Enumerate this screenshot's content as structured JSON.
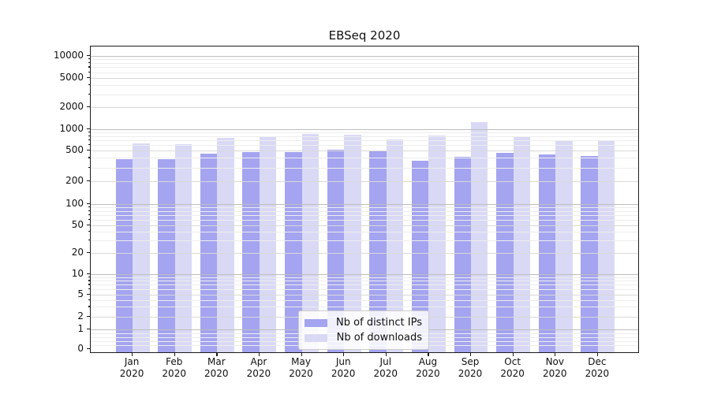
{
  "title": "EBSeq 2020",
  "chart_data": {
    "type": "bar",
    "title": "EBSeq 2020",
    "yscale": "symlog",
    "ylim": [
      0,
      13000
    ],
    "grid": true,
    "legend_position": "bottom-center",
    "categories": [
      "Jan 2020",
      "Feb 2020",
      "Mar 2020",
      "Apr 2020",
      "May 2020",
      "Jun 2020",
      "Jul 2020",
      "Aug 2020",
      "Sep 2020",
      "Oct 2020",
      "Nov 2020",
      "Dec 2020"
    ],
    "series": [
      {
        "name": "Nb of distinct IPs",
        "color": "#a4a4f0",
        "values": [
          371,
          368,
          437,
          455,
          452,
          487,
          463,
          350,
          393,
          445,
          426,
          405
        ]
      },
      {
        "name": "Nb of downloads",
        "color": "#d9d9f6",
        "values": [
          605,
          580,
          712,
          762,
          810,
          792,
          681,
          776,
          1186,
          762,
          656,
          656
        ]
      }
    ],
    "yticks": [
      {
        "label": "10000",
        "value": 10000,
        "y": 70
      },
      {
        "label": "5000",
        "value": 5000,
        "y": 98
      },
      {
        "label": "2000",
        "value": 2000,
        "y": 135
      },
      {
        "label": "1000",
        "value": 1000,
        "y": 163
      },
      {
        "label": "500",
        "value": 500,
        "y": 190
      },
      {
        "label": "200",
        "value": 200,
        "y": 229
      },
      {
        "label": "100",
        "value": 100,
        "y": 258
      },
      {
        "label": "50",
        "value": 50,
        "y": 284.5
      },
      {
        "label": "20",
        "value": 20,
        "y": 320
      },
      {
        "label": "10",
        "value": 10,
        "y": 347.3
      },
      {
        "label": "5",
        "value": 5,
        "y": 372.7
      },
      {
        "label": "2",
        "value": 2,
        "y": 401
      },
      {
        "label": "1",
        "value": 1,
        "y": 416.7
      },
      {
        "label": "0",
        "value": 0,
        "y": 442.3
      }
    ],
    "colors": {
      "grid_major": "#bdbdbd",
      "grid_mid": "#d9d9d9",
      "grid_minor": "#ededed",
      "axis_frame": "#1a1a1a",
      "text": "#111111"
    }
  },
  "legend": {
    "entries": [
      {
        "label": "Nb of distinct IPs",
        "color": "#a4a4f0"
      },
      {
        "label": "Nb of downloads",
        "color": "#d9d9f6"
      }
    ]
  }
}
